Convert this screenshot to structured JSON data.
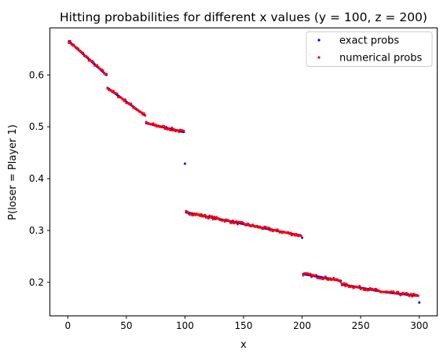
{
  "chart_data": {
    "type": "scatter",
    "title": "Hitting probabilities for different x values (y = 100, z = 200)",
    "xlabel": "x",
    "ylabel": "P(loser = Player 1)",
    "xlim": [
      -14.95,
      314.95
    ],
    "ylim": [
      0.136,
      0.69
    ],
    "xticks": [
      0,
      50,
      100,
      150,
      200,
      250,
      300
    ],
    "yticks": [
      0.2,
      0.3,
      0.4,
      0.5,
      0.6
    ],
    "xtick_labels": [
      "0",
      "50",
      "100",
      "150",
      "200",
      "250",
      "300"
    ],
    "ytick_labels": [
      "0.2",
      "0.3",
      "0.4",
      "0.5",
      "0.6"
    ],
    "grid": false,
    "legend_position": "top-right",
    "segments": [
      {
        "x_start": 1,
        "x_end": 33,
        "y_start": 0.665,
        "y_end": 0.6
      },
      {
        "x_start": 34,
        "x_end": 66,
        "y_start": 0.575,
        "y_end": 0.522
      },
      {
        "x_start": 67,
        "x_end": 99,
        "y_start": 0.507,
        "y_end": 0.49
      },
      {
        "x_start": 101,
        "x_end": 199,
        "y_start": 0.335,
        "y_end": 0.29
      },
      {
        "x_start": 201,
        "x_end": 233,
        "y_start": 0.216,
        "y_end": 0.203
      },
      {
        "x_start": 234,
        "x_end": 266,
        "y_start": 0.196,
        "y_end": 0.183
      },
      {
        "x_start": 267,
        "x_end": 299,
        "y_start": 0.182,
        "y_end": 0.174
      }
    ],
    "series": [
      {
        "name": "exact probs",
        "color": "#0000ff",
        "extra_points": [
          [
            100,
            0.429
          ],
          [
            200,
            0.286
          ],
          [
            300,
            0.161
          ]
        ]
      },
      {
        "name": "numerical probs",
        "color": "#ff0000",
        "jitter": 0.003
      }
    ]
  }
}
